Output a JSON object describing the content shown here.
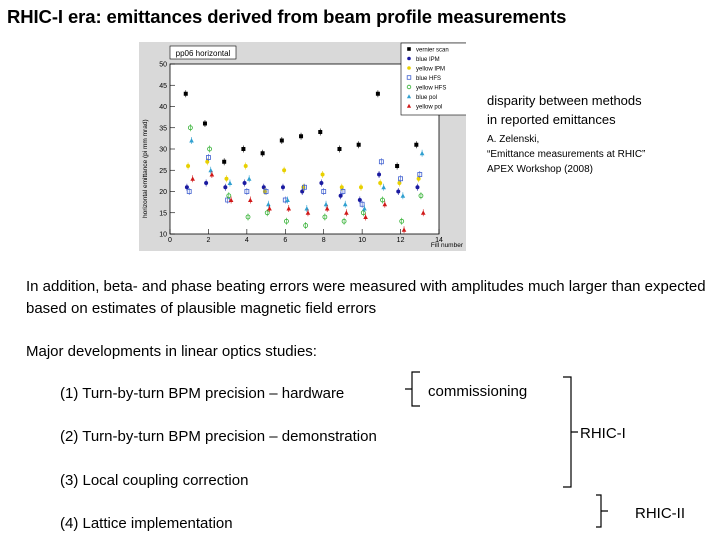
{
  "slide": {
    "title": "RHIC-I era: emittances derived from beam profile measurements",
    "caption_line1": "disparity between methods",
    "caption_line2": "in reported emittances",
    "ref_line1": "A.  Zelenski,",
    "ref_line2": "“Emittance measurements at RHIC”",
    "ref_line3": " APEX Workshop (2008)",
    "paragraph": "In addition, beta- and phase beating errors were measured with amplitudes much larger than expected based on estimates of plausible magnetic field errors",
    "heading": "Major developments in linear optics studies:",
    "items": [
      "(1)  Turn-by-turn BPM precision – hardware",
      "(2)  Turn-by-turn BPM precision – demonstration",
      "(3) Local coupling correction",
      "(4) Lattice implementation"
    ],
    "label_commissioning": "commissioning",
    "label_rhic1": "RHIC-I",
    "label_rhic2": "RHIC-II"
  },
  "chart_data": {
    "type": "scatter",
    "title": "pp06 horizontal",
    "xlabel": "Fill number",
    "ylabel": "horizontal emittance (pi mm mrad)",
    "xlim": [
      0,
      14
    ],
    "ylim": [
      10,
      50
    ],
    "xticks": [
      0,
      2,
      4,
      6,
      8,
      10,
      12,
      14
    ],
    "yticks": [
      10,
      15,
      20,
      25,
      30,
      35,
      40,
      45,
      50
    ],
    "grid": false,
    "legend_position": "top-right",
    "series": [
      {
        "name": "vernier scan",
        "color": "#000000",
        "marker": "square",
        "x": [
          1,
          2,
          3,
          4,
          5,
          6,
          7,
          8,
          9,
          10,
          11,
          12,
          13
        ],
        "y": [
          43,
          36,
          27,
          30,
          29,
          32,
          33,
          34,
          30,
          31,
          43,
          26,
          31
        ]
      },
      {
        "name": "blue IPM",
        "color": "#1a1aa0",
        "marker": "circle",
        "x": [
          1,
          2,
          3,
          4,
          5,
          6,
          7,
          8,
          9,
          10,
          11,
          12,
          13
        ],
        "y": [
          21,
          22,
          21,
          22,
          21,
          21,
          20,
          22,
          19,
          18,
          24,
          20,
          21
        ]
      },
      {
        "name": "yellow IPM",
        "color": "#e8d000",
        "marker": "circle",
        "x": [
          1,
          2,
          3,
          4,
          5,
          6,
          7,
          8,
          9,
          10,
          11,
          12,
          13
        ],
        "y": [
          26,
          27,
          23,
          26,
          20,
          25,
          21,
          24,
          21,
          21,
          22,
          22,
          23
        ]
      },
      {
        "name": "blue HFS",
        "color": "#4060d0",
        "marker": "open-square",
        "x": [
          1,
          2,
          3,
          4,
          5,
          6,
          7,
          8,
          9,
          10,
          11,
          12,
          13
        ],
        "y": [
          20,
          28,
          18,
          20,
          20,
          18,
          21,
          20,
          20,
          17,
          27,
          23,
          24
        ]
      },
      {
        "name": "yellow HFS",
        "color": "#30b030",
        "marker": "open-circle",
        "x": [
          1,
          2,
          3,
          4,
          5,
          6,
          7,
          8,
          9,
          10,
          11,
          12,
          13
        ],
        "y": [
          35,
          30,
          19,
          14,
          15,
          13,
          12,
          14,
          13,
          15,
          18,
          13,
          19
        ]
      },
      {
        "name": "blue pol",
        "color": "#30a0d0",
        "marker": "triangle",
        "x": [
          1,
          2,
          3,
          4,
          5,
          6,
          7,
          8,
          9,
          10,
          11,
          12,
          13
        ],
        "y": [
          32,
          25,
          22,
          23,
          17,
          18,
          16,
          17,
          17,
          16,
          21,
          19,
          29
        ]
      },
      {
        "name": "yellow pol",
        "color": "#d01818",
        "marker": "triangle",
        "x": [
          1,
          2,
          3,
          4,
          5,
          6,
          7,
          8,
          9,
          10,
          11,
          12,
          13
        ],
        "y": [
          23,
          24,
          18,
          18,
          16,
          16,
          15,
          16,
          15,
          14,
          17,
          11,
          15
        ]
      }
    ]
  }
}
